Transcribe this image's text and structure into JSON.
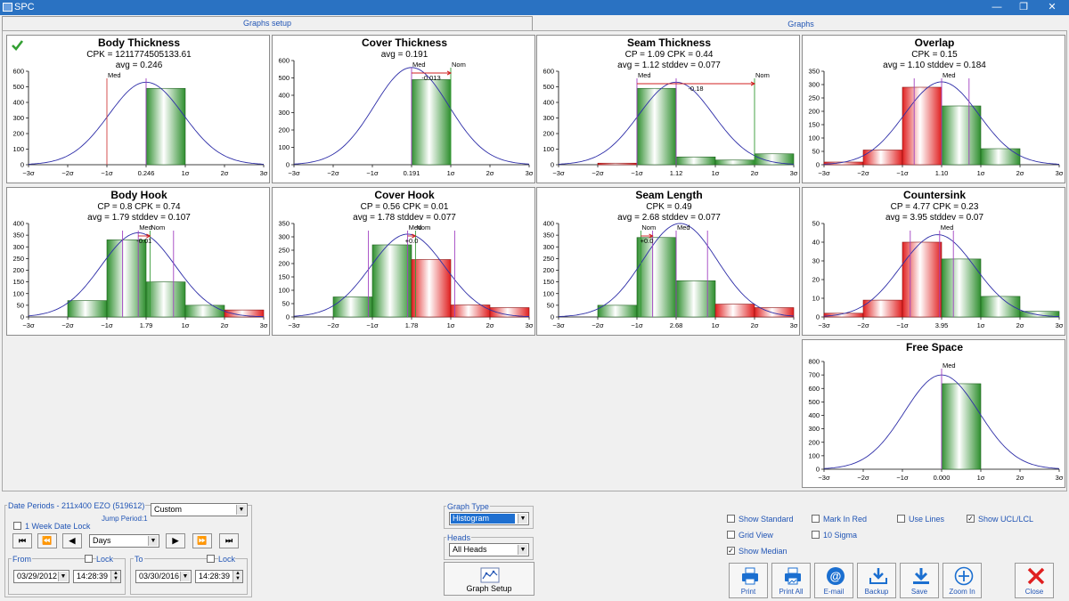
{
  "window": {
    "title": "SPC",
    "tabs": [
      "Graphs setup",
      "Graphs"
    ]
  },
  "graphs": [
    {
      "title": "Body Thickness",
      "stats": [
        "CPK = 1211774505133.61",
        "avg = 0.246"
      ],
      "has_check": true,
      "ymax": 600,
      "yticks": [
        0,
        100,
        200,
        300,
        400,
        500,
        600
      ],
      "xlabels": [
        "−3σ",
        "−2σ",
        "−1σ",
        "0.246",
        "1σ",
        "2σ",
        "3σ"
      ],
      "bars": [
        {
          "x0": 0,
          "x1": 1,
          "v": 490,
          "c": "green"
        }
      ],
      "curve_peak": 530,
      "curve_center": 0,
      "markers": [
        {
          "at": -1,
          "label": "Med",
          "color": "#d04040"
        },
        {
          "at": 0,
          "label": "",
          "color": "#a040c0"
        }
      ]
    },
    {
      "title": "Cover Thickness",
      "stats": [
        "avg = 0.191"
      ],
      "has_check": false,
      "ymax": 600,
      "yticks": [
        0,
        100,
        200,
        300,
        400,
        500,
        600
      ],
      "xlabels": [
        "−3σ",
        "−2σ",
        "−1σ",
        "0.191",
        "1σ",
        "2σ",
        "3σ"
      ],
      "bars": [
        {
          "x0": 0,
          "x1": 1,
          "v": 490,
          "c": "green"
        }
      ],
      "curve_peak": 560,
      "curve_center": 0,
      "markers": [
        {
          "at": 0,
          "label": "Med",
          "color": "#a040c0"
        },
        {
          "at": 1,
          "label": "Nom",
          "color": "#339933"
        }
      ],
      "span": {
        "from": 0,
        "to": 1,
        "label": "-0.013"
      }
    },
    {
      "title": "Seam Thickness",
      "stats": [
        "CP = 1.09  CPK = 0.44",
        "avg = 1.12  stddev = 0.077"
      ],
      "has_check": false,
      "ymax": 600,
      "yticks": [
        0,
        100,
        200,
        300,
        400,
        500,
        600
      ],
      "xlabels": [
        "−3σ",
        "−2σ",
        "−1σ",
        "1.12",
        "1σ",
        "2σ",
        "3σ"
      ],
      "bars": [
        {
          "x0": -2,
          "x1": -1,
          "v": 10,
          "c": "red"
        },
        {
          "x0": -1,
          "x1": 0,
          "v": 490,
          "c": "green"
        },
        {
          "x0": 0,
          "x1": 1,
          "v": 50,
          "c": "green"
        },
        {
          "x0": 1,
          "x1": 2,
          "v": 30,
          "c": "green"
        },
        {
          "x0": 2,
          "x1": 3,
          "v": 70,
          "c": "green"
        }
      ],
      "curve_peak": 530,
      "curve_center": 0,
      "markers": [
        {
          "at": -1,
          "label": "Med",
          "color": "#a040c0"
        },
        {
          "at": 0,
          "label": "",
          "color": "#a040c0"
        },
        {
          "at": 2,
          "label": "Nom",
          "color": "#339933"
        }
      ],
      "span": {
        "from": -1,
        "to": 2,
        "label": "-0.18"
      }
    },
    {
      "title": "Overlap",
      "stats": [
        "CPK = 0.15",
        "avg = 1.10  stddev = 0.184"
      ],
      "has_check": false,
      "ymax": 350,
      "yticks": [
        0,
        50,
        100,
        150,
        200,
        250,
        300,
        350
      ],
      "xlabels": [
        "−3σ",
        "−2σ",
        "−1σ",
        "1.10",
        "1σ",
        "2σ",
        "3σ"
      ],
      "bars": [
        {
          "x0": -3,
          "x1": -2,
          "v": 10,
          "c": "red"
        },
        {
          "x0": -2,
          "x1": -1,
          "v": 55,
          "c": "red"
        },
        {
          "x0": -1,
          "x1": 0,
          "v": 290,
          "c": "red"
        },
        {
          "x0": 0,
          "x1": 1,
          "v": 220,
          "c": "green"
        },
        {
          "x0": 1,
          "x1": 2,
          "v": 60,
          "c": "green"
        }
      ],
      "curve_peak": 310,
      "curve_center": 0,
      "markers": [
        {
          "at": -0.7,
          "label": "",
          "color": "#a040c0"
        },
        {
          "at": 0,
          "label": "Med",
          "color": "#a040c0"
        },
        {
          "at": 0.7,
          "label": "",
          "color": "#a040c0"
        }
      ]
    },
    {
      "title": "Body Hook",
      "stats": [
        "CP = 0.8  CPK = 0.74",
        "avg = 1.79  stddev = 0.107"
      ],
      "has_check": false,
      "ymax": 400,
      "yticks": [
        0,
        50,
        100,
        150,
        200,
        250,
        300,
        350,
        400
      ],
      "xlabels": [
        "−3σ",
        "−2σ",
        "−1σ",
        "1.79",
        "1σ",
        "2σ",
        "3σ"
      ],
      "bars": [
        {
          "x0": -2,
          "x1": -1,
          "v": 70,
          "c": "green"
        },
        {
          "x0": -1,
          "x1": 0,
          "v": 330,
          "c": "green"
        },
        {
          "x0": 0,
          "x1": 1,
          "v": 150,
          "c": "green"
        },
        {
          "x0": 1,
          "x1": 2,
          "v": 50,
          "c": "green"
        },
        {
          "x0": 2,
          "x1": 3,
          "v": 30,
          "c": "red"
        }
      ],
      "curve_peak": 360,
      "curve_center": -0.2,
      "markers": [
        {
          "at": -0.6,
          "label": "",
          "color": "#a040c0"
        },
        {
          "at": -0.2,
          "label": "Med",
          "color": "#a040c0"
        },
        {
          "at": 0.1,
          "label": "Nom",
          "color": "#339933"
        },
        {
          "at": 0.7,
          "label": "",
          "color": "#a040c0"
        }
      ],
      "span": {
        "from": -0.2,
        "to": 0.1,
        "label": "-0.01"
      }
    },
    {
      "title": "Cover Hook",
      "stats": [
        "CP = 0.56  CPK = 0.01",
        "avg = 1.78  stddev = 0.077"
      ],
      "has_check": false,
      "ymax": 350,
      "yticks": [
        0,
        50,
        100,
        150,
        200,
        250,
        300,
        350
      ],
      "xlabels": [
        "−3σ",
        "−2σ",
        "−1σ",
        "1.78",
        "1σ",
        "2σ",
        "3σ"
      ],
      "bars": [
        {
          "x0": -2,
          "x1": -1,
          "v": 75,
          "c": "green"
        },
        {
          "x0": -1,
          "x1": 0,
          "v": 270,
          "c": "green"
        },
        {
          "x0": 0,
          "x1": 1,
          "v": 215,
          "c": "red"
        },
        {
          "x0": 1,
          "x1": 2,
          "v": 45,
          "c": "red"
        },
        {
          "x0": 2,
          "x1": 3,
          "v": 35,
          "c": "red"
        }
      ],
      "curve_peak": 310,
      "curve_center": -0.1,
      "markers": [
        {
          "at": -1.1,
          "label": "",
          "color": "#a040c0"
        },
        {
          "at": -0.1,
          "label": "Med",
          "color": "#a040c0"
        },
        {
          "at": 0.1,
          "label": "Nom",
          "color": "#339933"
        },
        {
          "at": 1.1,
          "label": "",
          "color": "#a040c0"
        }
      ],
      "span": {
        "from": -0.1,
        "to": 0.1,
        "label": "+0.0"
      }
    },
    {
      "title": "Seam Length",
      "stats": [
        "CPK = 0.49",
        "avg = 2.68  stddev = 0.077"
      ],
      "has_check": false,
      "ymax": 400,
      "yticks": [
        0,
        50,
        100,
        150,
        200,
        250,
        300,
        350,
        400
      ],
      "xlabels": [
        "−3σ",
        "−2σ",
        "−1σ",
        "2.68",
        "1σ",
        "2σ",
        "3σ"
      ],
      "bars": [
        {
          "x0": -2,
          "x1": -1,
          "v": 50,
          "c": "green"
        },
        {
          "x0": -1,
          "x1": 0,
          "v": 340,
          "c": "green"
        },
        {
          "x0": 0,
          "x1": 1,
          "v": 155,
          "c": "green"
        },
        {
          "x0": 1,
          "x1": 2,
          "v": 55,
          "c": "red"
        },
        {
          "x0": 2,
          "x1": 3,
          "v": 40,
          "c": "red"
        }
      ],
      "curve_peak": 400,
      "curve_center": 0.1,
      "markers": [
        {
          "at": -0.9,
          "label": "Nom",
          "color": "#339933"
        },
        {
          "at": -0.6,
          "label": "",
          "color": "#a040c0"
        },
        {
          "at": 0,
          "label": "Med",
          "color": "#a040c0"
        },
        {
          "at": 0.8,
          "label": "",
          "color": "#a040c0"
        }
      ],
      "span": {
        "from": -0.9,
        "to": -0.6,
        "label": "+0.0"
      }
    },
    {
      "title": "Countersink",
      "stats": [
        "CP = 4.77  CPK = 0.23",
        "avg = 3.95  stddev = 0.07"
      ],
      "has_check": false,
      "ymax": 50,
      "yticks": [
        0,
        10,
        20,
        30,
        40,
        50
      ],
      "xlabels": [
        "−3σ",
        "−2σ",
        "−1σ",
        "3.95",
        "1σ",
        "2σ",
        "3σ"
      ],
      "bars": [
        {
          "x0": -3,
          "x1": -2,
          "v": 2,
          "c": "red"
        },
        {
          "x0": -2,
          "x1": -1,
          "v": 9,
          "c": "red"
        },
        {
          "x0": -1,
          "x1": 0,
          "v": 40,
          "c": "red"
        },
        {
          "x0": 0,
          "x1": 1,
          "v": 31,
          "c": "green"
        },
        {
          "x0": 1,
          "x1": 2,
          "v": 11,
          "c": "green"
        },
        {
          "x0": 2,
          "x1": 3,
          "v": 3,
          "c": "green"
        }
      ],
      "curve_peak": 44,
      "curve_center": -0.1,
      "markers": [
        {
          "at": -0.8,
          "label": "",
          "color": "#a040c0"
        },
        {
          "at": -0.05,
          "label": "Med",
          "color": "#a040c0"
        },
        {
          "at": 0.3,
          "label": "",
          "color": "#a040c0"
        }
      ]
    },
    {
      "title": "Free Space",
      "stats": [],
      "has_check": false,
      "ymax": 800,
      "yticks": [
        0,
        100,
        200,
        300,
        400,
        500,
        600,
        700,
        800
      ],
      "xlabels": [
        "−3σ",
        "−2σ",
        "−1σ",
        "0.000",
        "1σ",
        "2σ",
        "3σ"
      ],
      "bars": [
        {
          "x0": 0,
          "x1": 1,
          "v": 635,
          "c": "green"
        }
      ],
      "curve_peak": 700,
      "curve_center": 0,
      "markers": [
        {
          "at": 0,
          "label": "Med",
          "color": "#a040c0"
        }
      ]
    }
  ],
  "controls": {
    "date_periods_label": "Date Periods - 211x400 EZO (519612)",
    "custom_value": "Custom",
    "week_lock_label": "1 Week Date Lock",
    "jump_period_label": "Jump Period:1",
    "period_unit": "Days",
    "nav": [
      "⏮",
      "⏪",
      "◀",
      "▶",
      "⏩",
      "⏭"
    ],
    "from_label": "From",
    "to_label": "To",
    "lock_label": "Lock",
    "from_date": "03/29/2012",
    "from_time": "14:28:39",
    "to_date": "03/30/2016",
    "to_time": "14:28:39",
    "graph_type_label": "Graph Type",
    "graph_type_value": "Histogram",
    "heads_label": "Heads",
    "heads_value": "All Heads",
    "graph_setup_label": "Graph Setup",
    "checkboxes": [
      {
        "label": "Show Standard",
        "checked": false
      },
      {
        "label": "Mark In Red",
        "checked": false
      },
      {
        "label": "Use Lines",
        "checked": false
      },
      {
        "label": "Show UCL/LCL",
        "checked": true
      },
      {
        "label": "Grid View",
        "checked": false
      },
      {
        "label": "10 Sigma",
        "checked": false
      },
      {
        "label": "Show Median",
        "checked": true
      }
    ],
    "buttons": [
      "Print",
      "Print All",
      "E-mail",
      "Backup",
      "Save",
      "Zoom In",
      "Close"
    ],
    "colors": {
      "accent": "#2155b5",
      "bar_green": "#2f8f2f",
      "bar_red": "#e02020",
      "curve": "#2e2ea8"
    }
  }
}
